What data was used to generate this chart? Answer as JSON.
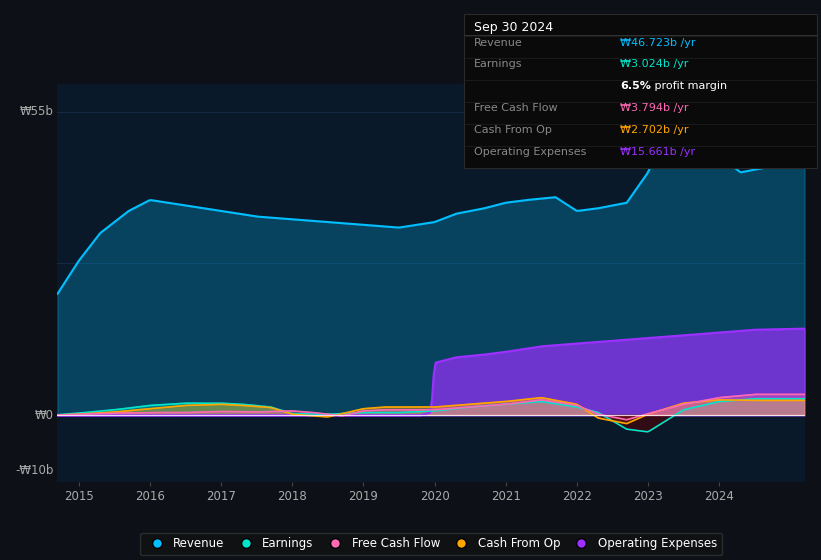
{
  "bg_color": "#0d1117",
  "plot_bg_color": "#0a1929",
  "grid_color": "#1e3a5f",
  "ylabel_55": "₩55b",
  "ylabel_0": "₩0",
  "ylabel_neg10": "-₩10b",
  "x_years": [
    2015,
    2016,
    2017,
    2018,
    2019,
    2020,
    2021,
    2022,
    2023,
    2024
  ],
  "revenue_color": "#00bfff",
  "earnings_color": "#00e5cc",
  "fcf_color": "#ff69b4",
  "cashop_color": "#ffa500",
  "opex_color": "#9b30ff",
  "legend_items": [
    "Revenue",
    "Earnings",
    "Free Cash Flow",
    "Cash From Op",
    "Operating Expenses"
  ],
  "tooltip_title": "Sep 30 2024",
  "tooltip_revenue": "₩46.723b /yr",
  "tooltip_earnings": "₩3.024b /yr",
  "tooltip_margin": "6.5% profit margin",
  "tooltip_fcf": "₩3.794b /yr",
  "tooltip_cashop": "₩2.702b /yr",
  "tooltip_opex": "₩15.661b /yr"
}
